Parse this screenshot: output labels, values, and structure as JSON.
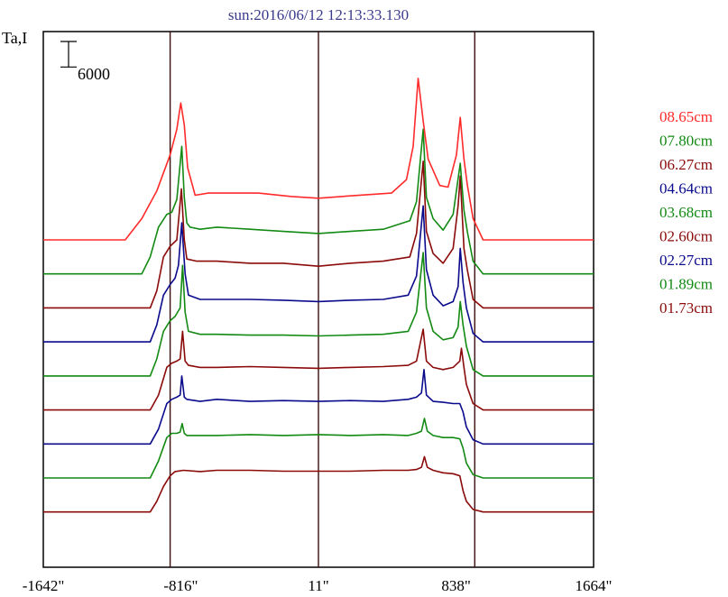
{
  "chart_data": {
    "type": "line",
    "title": "sun:2016/06/12 12:13:33.130",
    "ylabel": "Ta,I",
    "xlabel": "",
    "scale_bar_label": "6000",
    "scale_bar_value": 6000,
    "xlim": [
      -1642,
      1664
    ],
    "ylim": [
      -13000,
      113000
    ],
    "x_ticks": [
      {
        "value": -1642,
        "label": "-1642\""
      },
      {
        "value": -816,
        "label": "-816\""
      },
      {
        "value": 11,
        "label": "11\""
      },
      {
        "value": 838,
        "label": "838\""
      },
      {
        "value": 1664,
        "label": "1664\""
      }
    ],
    "vertical_lines": [
      -880,
      11,
      950
    ],
    "grid": false,
    "legend_position": "right",
    "series": [
      {
        "name": "08.65cm",
        "color": "#ff2a2a",
        "offset": 64000,
        "x": [
          -1642,
          -1150,
          -1050,
          -960,
          -880,
          -840,
          -816,
          -795,
          -775,
          -730,
          -650,
          -500,
          -350,
          -150,
          11,
          150,
          450,
          540,
          580,
          610,
          640,
          670,
          740,
          790,
          840,
          863,
          885,
          905,
          940,
          1000,
          1100,
          1664
        ],
        "y": [
          0,
          0,
          5000,
          11500,
          20000,
          26000,
          32200,
          27000,
          17000,
          10500,
          11000,
          11000,
          11000,
          10200,
          9800,
          10200,
          11000,
          14200,
          22000,
          38000,
          28000,
          19000,
          12800,
          12400,
          20000,
          28800,
          19000,
          13000,
          5000,
          0,
          0,
          0
        ]
      },
      {
        "name": "07.80cm",
        "color": "#138a13",
        "offset": 56000,
        "x": [
          -1642,
          -1050,
          -1000,
          -950,
          -900,
          -870,
          -840,
          -810,
          -795,
          -780,
          -760,
          -700,
          -600,
          -400,
          -200,
          11,
          200,
          400,
          560,
          600,
          640,
          660,
          700,
          760,
          820,
          863,
          885,
          905,
          940,
          1000,
          1664
        ],
        "y": [
          0,
          0,
          4000,
          11000,
          14000,
          14500,
          17500,
          30000,
          18000,
          12000,
          11000,
          10500,
          11000,
          10500,
          10000,
          9500,
          10000,
          10500,
          12500,
          17000,
          34000,
          18000,
          13000,
          10300,
          14000,
          26000,
          15000,
          10000,
          3000,
          0,
          0
        ]
      },
      {
        "name": "06.27cm",
        "color": "#8b0a0a",
        "offset": 48000,
        "x": [
          -1642,
          -1000,
          -960,
          -920,
          -880,
          -840,
          -812,
          -795,
          -780,
          -720,
          -600,
          -400,
          -200,
          11,
          200,
          400,
          560,
          600,
          640,
          660,
          700,
          760,
          820,
          850,
          863,
          885,
          905,
          940,
          1000,
          1664
        ],
        "y": [
          0,
          0,
          4000,
          12000,
          14500,
          16000,
          28000,
          16000,
          11500,
          11000,
          11000,
          10500,
          10500,
          9800,
          10500,
          11000,
          12000,
          17500,
          34500,
          18000,
          12800,
          10500,
          14000,
          24000,
          31000,
          14000,
          9000,
          2000,
          0,
          0
        ]
      },
      {
        "name": "04.64cm",
        "color": "#0a0a8c",
        "offset": 40000,
        "x": [
          -1642,
          -1000,
          -960,
          -920,
          -880,
          -850,
          -830,
          -810,
          -790,
          -770,
          -700,
          -600,
          -400,
          -200,
          11,
          200,
          400,
          550,
          600,
          640,
          660,
          700,
          760,
          820,
          850,
          863,
          880,
          900,
          940,
          1000,
          1664
        ],
        "y": [
          0,
          0,
          4000,
          11000,
          13500,
          15000,
          18000,
          28000,
          16000,
          11000,
          10000,
          10000,
          10000,
          9800,
          9500,
          9800,
          10000,
          11000,
          15500,
          32000,
          17000,
          11000,
          8500,
          9500,
          13000,
          22000,
          14000,
          8000,
          2000,
          0,
          0
        ]
      },
      {
        "name": "03.68cm",
        "color": "#138a13",
        "offset": 32000,
        "x": [
          -1642,
          -1000,
          -960,
          -920,
          -880,
          -850,
          -820,
          -805,
          -790,
          -770,
          -700,
          -600,
          -400,
          -200,
          11,
          200,
          400,
          550,
          600,
          640,
          660,
          700,
          760,
          820,
          850,
          863,
          880,
          900,
          940,
          1000,
          1664
        ],
        "y": [
          0,
          0,
          4000,
          10500,
          13000,
          14000,
          16000,
          26000,
          15000,
          10500,
          9800,
          9800,
          9600,
          9600,
          9400,
          9600,
          9800,
          10500,
          15000,
          29000,
          16000,
          10500,
          8500,
          9000,
          11500,
          17500,
          12000,
          7000,
          1500,
          0,
          0
        ]
      },
      {
        "name": "02.60cm",
        "color": "#8b0a0a",
        "offset": 24000,
        "x": [
          -1642,
          -1000,
          -950,
          -900,
          -870,
          -840,
          -820,
          -805,
          -790,
          -770,
          -700,
          -600,
          -400,
          -200,
          11,
          200,
          400,
          550,
          600,
          640,
          660,
          700,
          760,
          820,
          860,
          870,
          885,
          900,
          940,
          1000,
          1664
        ],
        "y": [
          0,
          0,
          3500,
          10000,
          11000,
          11500,
          12000,
          18500,
          11500,
          10500,
          10000,
          10000,
          10200,
          10000,
          9800,
          10000,
          10200,
          10500,
          11500,
          19000,
          11500,
          10000,
          9500,
          10000,
          11500,
          14500,
          10000,
          6000,
          1500,
          0,
          0
        ]
      },
      {
        "name": "02.27cm",
        "color": "#0a0a8c",
        "offset": 16000,
        "x": [
          -1642,
          -1000,
          -950,
          -900,
          -870,
          -840,
          -820,
          -810,
          -795,
          -780,
          -700,
          -600,
          -400,
          -200,
          11,
          200,
          400,
          550,
          600,
          630,
          645,
          660,
          700,
          760,
          820,
          860,
          880,
          900,
          940,
          1000,
          1664
        ],
        "y": [
          0,
          0,
          3500,
          9500,
          10500,
          11000,
          11500,
          16000,
          11000,
          10500,
          10000,
          10500,
          10000,
          10200,
          10000,
          10200,
          10000,
          10500,
          11000,
          12000,
          17500,
          11500,
          10000,
          9800,
          9500,
          9500,
          7500,
          4000,
          1000,
          0,
          0
        ]
      },
      {
        "name": "01.89cm",
        "color": "#138a13",
        "offset": 8000,
        "x": [
          -1642,
          -1000,
          -950,
          -900,
          -870,
          -840,
          -820,
          -808,
          -795,
          -780,
          -700,
          -600,
          -400,
          -200,
          11,
          200,
          400,
          550,
          600,
          630,
          648,
          665,
          700,
          760,
          820,
          860,
          880,
          900,
          940,
          1000,
          1664
        ],
        "y": [
          0,
          0,
          4000,
          9500,
          10500,
          10500,
          10800,
          12800,
          10500,
          10000,
          10000,
          10000,
          10200,
          10000,
          10200,
          10000,
          10200,
          10000,
          10500,
          11000,
          14000,
          11000,
          10000,
          9500,
          9500,
          9200,
          7000,
          3500,
          800,
          0,
          0
        ]
      },
      {
        "name": "01.73cm",
        "color": "#8b0a0a",
        "offset": 0,
        "x": [
          -1642,
          -1000,
          -960,
          -920,
          -880,
          -850,
          -800,
          -700,
          -600,
          -400,
          -200,
          11,
          200,
          400,
          550,
          600,
          630,
          648,
          665,
          700,
          760,
          820,
          860,
          880,
          900,
          940,
          1000,
          1664
        ],
        "y": [
          0,
          0,
          2500,
          6000,
          8500,
          9500,
          9800,
          9500,
          9800,
          9800,
          9600,
          9600,
          9600,
          9800,
          9800,
          10000,
          10500,
          13000,
          10500,
          9800,
          9200,
          9000,
          8500,
          5000,
          2500,
          600,
          0,
          0
        ]
      }
    ]
  }
}
